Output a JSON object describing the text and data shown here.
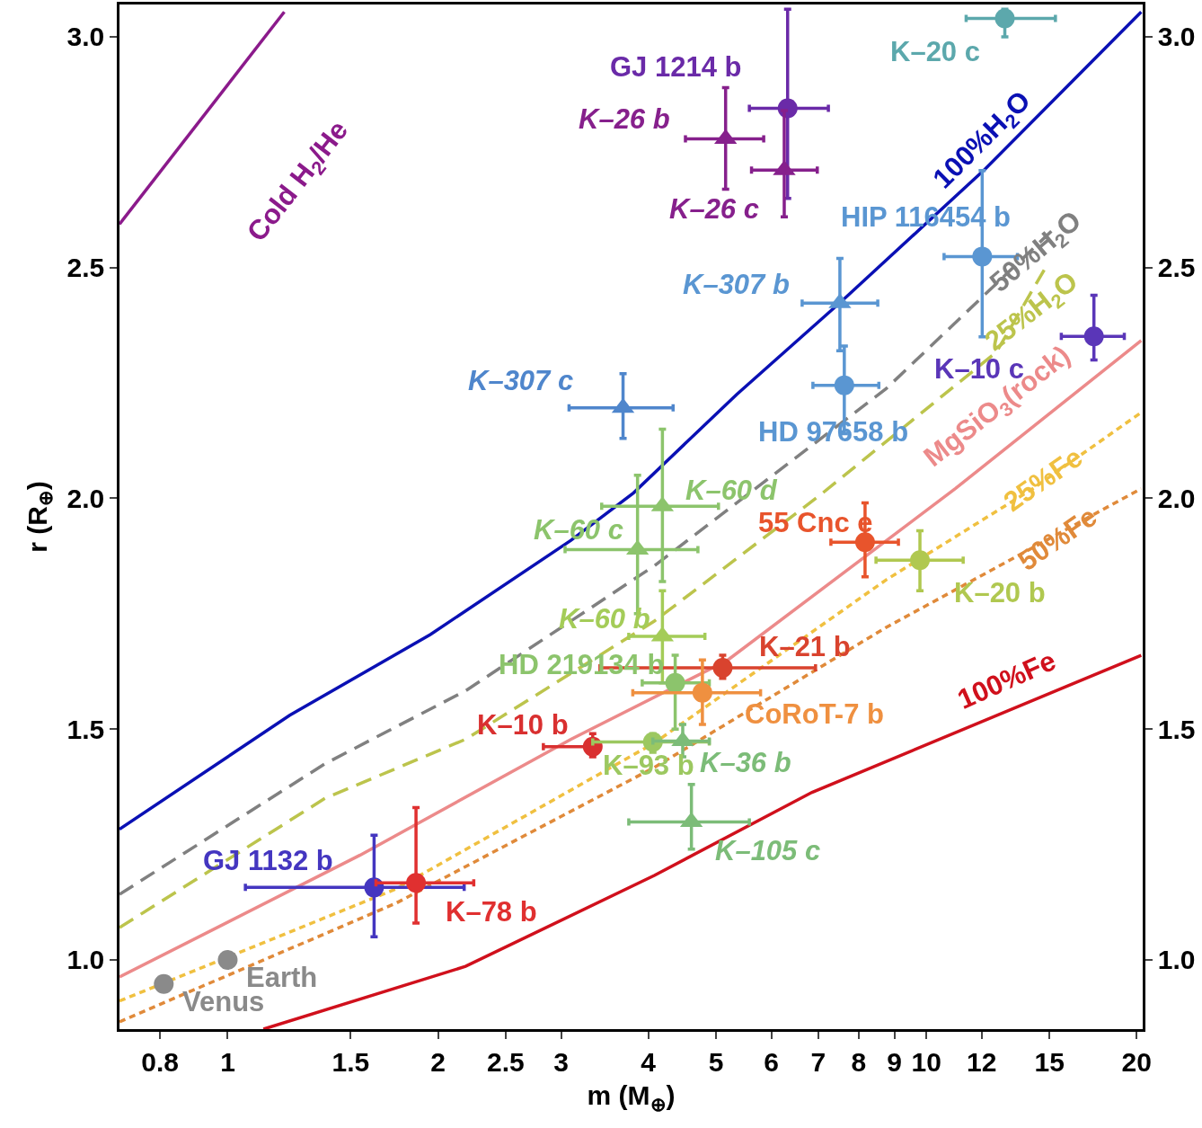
{
  "chart_data": {
    "type": "scatter",
    "xlabel": "m (M$_{⊕}$)",
    "ylabel": "r (R$_{⊕}$)",
    "log": "x",
    "xlim": [
      0.7,
      20.4
    ],
    "ylim": [
      0.85,
      3.07
    ],
    "y2lim": [
      0.85,
      3.07
    ],
    "xticks": [
      0.8,
      1,
      1.5,
      2,
      2.5,
      3,
      4,
      5,
      6,
      7,
      8,
      9,
      10,
      12,
      15,
      20
    ],
    "yticks": [
      {
        "value": 1,
        "label": "1.0"
      },
      {
        "value": 1.5,
        "label": "1.5"
      },
      {
        "value": 2,
        "label": "2.0"
      },
      {
        "value": 2.5,
        "label": "2.5"
      },
      {
        "value": 3,
        "label": "3.0"
      }
    ],
    "y2ticks": [
      {
        "value": 1,
        "label": "1.0"
      },
      {
        "value": 1.5,
        "label": "1.5"
      },
      {
        "value": 2,
        "label": "2.0"
      },
      {
        "value": 2.5,
        "label": "2.5"
      },
      {
        "value": 3,
        "label": "3.0"
      }
    ],
    "series": [
      {
        "name": "Cold H$_{2}$/He",
        "type": "line",
        "color": "#8b1a8b",
        "line_style": "solid",
        "x": [
          0.7,
          1.205
        ],
        "values": [
          2.594,
          3.054
        ]
      },
      {
        "name": "100%H$_{2}$O",
        "type": "line",
        "color": "#0a10b4",
        "line_style": "solid",
        "x": [
          0.7,
          1.227,
          1.95,
          3.1,
          3.81,
          5.35,
          7.56,
          12.13,
          20.3
        ],
        "values": [
          1.283,
          1.53,
          1.705,
          1.909,
          2.012,
          2.225,
          2.427,
          2.713,
          3.054
        ]
      },
      {
        "name": "50%H$_{2}$O",
        "type": "line",
        "color": "#808080",
        "line_style": "dashed",
        "x": [
          0.7,
          1.378,
          2.19,
          4.08,
          8.75,
          15.1
        ],
        "values": [
          1.142,
          1.425,
          1.583,
          1.854,
          2.237,
          2.579
        ]
      },
      {
        "name": "25%H$_{2}$O",
        "type": "line",
        "color": "#bcc44c",
        "line_style": "dashed",
        "x": [
          0.7,
          1.378,
          2.19,
          4.08,
          7.03,
          12.6,
          14.9
        ],
        "values": [
          1.07,
          1.35,
          1.478,
          1.734,
          2.006,
          2.317,
          2.507
        ]
      },
      {
        "name": "MgSiO$_{3}$(rock)",
        "type": "line",
        "color": "#ec8a8a",
        "line_style": "solid",
        "x": [
          0.7,
          1.547,
          3.1,
          5.19,
          11.0,
          20.3
        ],
        "values": [
          0.963,
          1.227,
          1.478,
          1.649,
          2.021,
          2.342
        ]
      },
      {
        "name": "25%Fe",
        "type": "line",
        "color": "#f0c040",
        "line_style": "dotted",
        "x": [
          0.7,
          1.737,
          4.08,
          8.75,
          14.2,
          20.3
        ],
        "values": [
          0.911,
          1.153,
          1.47,
          1.823,
          2.021,
          2.186
        ]
      },
      {
        "name": "50%Fe",
        "type": "line",
        "color": "#e08a3a",
        "line_style": "dotted",
        "x": [
          0.7,
          1.737,
          4.08,
          8.75,
          20.3
        ],
        "values": [
          0.866,
          1.122,
          1.417,
          1.72,
          2.021
        ]
      },
      {
        "name": "100%Fe",
        "type": "line",
        "color": "#d0101c",
        "line_style": "solid",
        "x": [
          1.125,
          2.19,
          4.08,
          6.86,
          20.3
        ],
        "values": [
          0.85,
          0.986,
          1.183,
          1.363,
          1.66
        ]
      },
      {
        "name": "GJ 1214 b",
        "color": "#6a2aa8",
        "marker": "circle",
        "x": [
          6.33
        ],
        "values": [
          2.845
        ],
        "errors": [
          [
            2.65,
            3.06
          ]
        ],
        "xerrors": [
          [
            5.58,
            7.24
          ]
        ]
      },
      {
        "name": "K–26 b",
        "color": "#86208c",
        "marker": "triangle",
        "x": [
          5.16
        ],
        "values": [
          2.779
        ],
        "errors": [
          [
            2.67,
            2.89
          ]
        ],
        "xerrors": [
          [
            4.52,
            5.85
          ]
        ]
      },
      {
        "name": "K–26 c",
        "color": "#86208c",
        "marker": "triangle",
        "x": [
          6.26
        ],
        "values": [
          2.711
        ],
        "errors": [
          [
            2.61,
            2.84
          ]
        ],
        "xerrors": [
          [
            5.62,
            6.98
          ]
        ]
      },
      {
        "name": "K–20 c",
        "color": "#5ca8ac",
        "marker": "circle",
        "x": [
          12.95
        ],
        "values": [
          3.04
        ],
        "errors": [
          [
            3.0,
            3.06
          ]
        ],
        "xerrors": [
          [
            11.4,
            15.3
          ]
        ]
      },
      {
        "name": "HIP 116454 b",
        "color": "#5a96d2",
        "marker": "circle",
        "x": [
          12.02
        ],
        "values": [
          2.524
        ],
        "errors": [
          [
            2.35,
            2.71
          ]
        ],
        "xerrors": [
          [
            10.6,
            13.5
          ]
        ]
      },
      {
        "name": "K–10 c",
        "color": "#5a36b8",
        "marker": "circle",
        "x": [
          17.37
        ],
        "values": [
          2.351
        ],
        "errors": [
          [
            2.3,
            2.44
          ]
        ],
        "xerrors": [
          [
            15.6,
            19.2
          ]
        ]
      },
      {
        "name": "K–307 b",
        "color": "#5a96d2",
        "marker": "triangle",
        "x": [
          7.52
        ],
        "values": [
          2.423
        ],
        "errors": [
          [
            2.32,
            2.52
          ]
        ],
        "xerrors": [
          [
            6.64,
            8.52
          ]
        ]
      },
      {
        "name": "HD 97658 b",
        "color": "#5a96d2",
        "marker": "circle",
        "x": [
          7.63
        ],
        "values": [
          2.245
        ],
        "errors": [
          [
            2.14,
            2.33
          ]
        ],
        "xerrors": [
          [
            6.88,
            8.55
          ]
        ]
      },
      {
        "name": "K–307 c",
        "color": "#4f86cc",
        "marker": "triangle",
        "x": [
          3.68
        ],
        "values": [
          2.196
        ],
        "errors": [
          [
            2.13,
            2.27
          ]
        ],
        "xerrors": [
          [
            3.08,
            4.34
          ]
        ]
      },
      {
        "name": "K–60 d",
        "color": "#8cc46c",
        "marker": "triangle",
        "x": [
          4.19
        ],
        "values": [
          1.983
        ],
        "errors": [
          [
            1.82,
            2.15
          ]
        ],
        "xerrors": [
          [
            3.43,
            5.04
          ]
        ]
      },
      {
        "name": "K–60 c",
        "color": "#8cc46c",
        "marker": "triangle",
        "x": [
          3.86
        ],
        "values": [
          1.889
        ],
        "errors": [
          [
            1.75,
            2.05
          ]
        ],
        "xerrors": [
          [
            3.04,
            4.71
          ]
        ]
      },
      {
        "name": "K–60 b",
        "color": "#a4cc58",
        "marker": "triangle",
        "x": [
          4.19
        ],
        "values": [
          1.701
        ],
        "errors": [
          [
            1.6,
            1.8
          ]
        ],
        "xerrors": [
          [
            3.75,
            4.82
          ]
        ]
      },
      {
        "name": "55 Cnc e",
        "color": "#e8542c",
        "marker": "circle",
        "x": [
          8.17
        ],
        "values": [
          1.905
        ],
        "errors": [
          [
            1.83,
            1.99
          ]
        ],
        "xerrors": [
          [
            7.3,
            9.12
          ]
        ]
      },
      {
        "name": "K–20 b",
        "color": "#b0c850",
        "marker": "circle",
        "x": [
          9.79
        ],
        "values": [
          1.866
        ],
        "errors": [
          [
            1.8,
            1.93
          ]
        ],
        "xerrors": [
          [
            8.47,
            11.29
          ]
        ]
      },
      {
        "name": "K–21 b",
        "color": "#d9432e",
        "marker": "circle",
        "x": [
          5.11
        ],
        "values": [
          1.633
        ],
        "errors": [
          [
            1.61,
            1.66
          ]
        ],
        "xerrors": [
          [
            3.41,
            6.94
          ]
        ]
      },
      {
        "name": "HD 219134 b",
        "color": "#8cc46c",
        "marker": "circle",
        "x": [
          4.37
        ],
        "values": [
          1.6
        ],
        "errors": [
          [
            1.5,
            1.66
          ]
        ],
        "xerrors": [
          [
            3.92,
            4.89
          ]
        ]
      },
      {
        "name": "CoRoT-7 b",
        "color": "#ef9040",
        "marker": "circle",
        "x": [
          4.78
        ],
        "values": [
          1.579
        ],
        "errors": [
          [
            1.51,
            1.65
          ]
        ],
        "xerrors": [
          [
            3.8,
            5.79
          ]
        ]
      },
      {
        "name": "K–10 b",
        "color": "#d93030",
        "marker": "circle",
        "x": [
          3.33
        ],
        "values": [
          1.462
        ],
        "errors": [
          [
            1.44,
            1.49
          ]
        ],
        "xerrors": [
          [
            2.83,
            3.41
          ]
        ]
      },
      {
        "name": "K–93 b",
        "color": "#9cc860",
        "marker": "circle",
        "x": [
          4.06
        ],
        "values": [
          1.472
        ],
        "errors": [
          [
            1.45,
            1.49
          ]
        ],
        "xerrors": [
          [
            3.33,
            4.89
          ]
        ]
      },
      {
        "name": "K–36 b",
        "color": "#7cbc78",
        "marker": "triangle",
        "x": [
          4.48
        ],
        "values": [
          1.474
        ],
        "errors": [
          [
            1.44,
            1.51
          ]
        ],
        "xerrors": [
          [
            4.06,
            4.89
          ]
        ]
      },
      {
        "name": "K–105 c",
        "color": "#7cbc78",
        "marker": "triangle",
        "x": [
          4.61
        ],
        "values": [
          1.299
        ],
        "errors": [
          [
            1.24,
            1.38
          ]
        ],
        "xerrors": [
          [
            3.75,
            5.58
          ]
        ]
      },
      {
        "name": "GJ 1132 b",
        "color": "#4436c0",
        "marker": "circle",
        "x": [
          1.62
        ],
        "values": [
          1.157
        ],
        "errors": [
          [
            1.05,
            1.27
          ]
        ],
        "xerrors": [
          [
            1.06,
            2.18
          ]
        ]
      },
      {
        "name": "K–78 b",
        "color": "#e03030",
        "marker": "circle",
        "x": [
          1.86
        ],
        "values": [
          1.167
        ],
        "errors": [
          [
            1.08,
            1.33
          ]
        ],
        "xerrors": [
          [
            1.63,
            2.25
          ]
        ]
      },
      {
        "name": "Earth",
        "color": "#8a8a8a",
        "marker": "circle",
        "x": [
          1.0
        ],
        "values": [
          1.0
        ]
      },
      {
        "name": "Venus",
        "color": "#8a8a8a",
        "marker": "circle",
        "x": [
          0.81
        ],
        "values": [
          0.948
        ]
      }
    ]
  }
}
